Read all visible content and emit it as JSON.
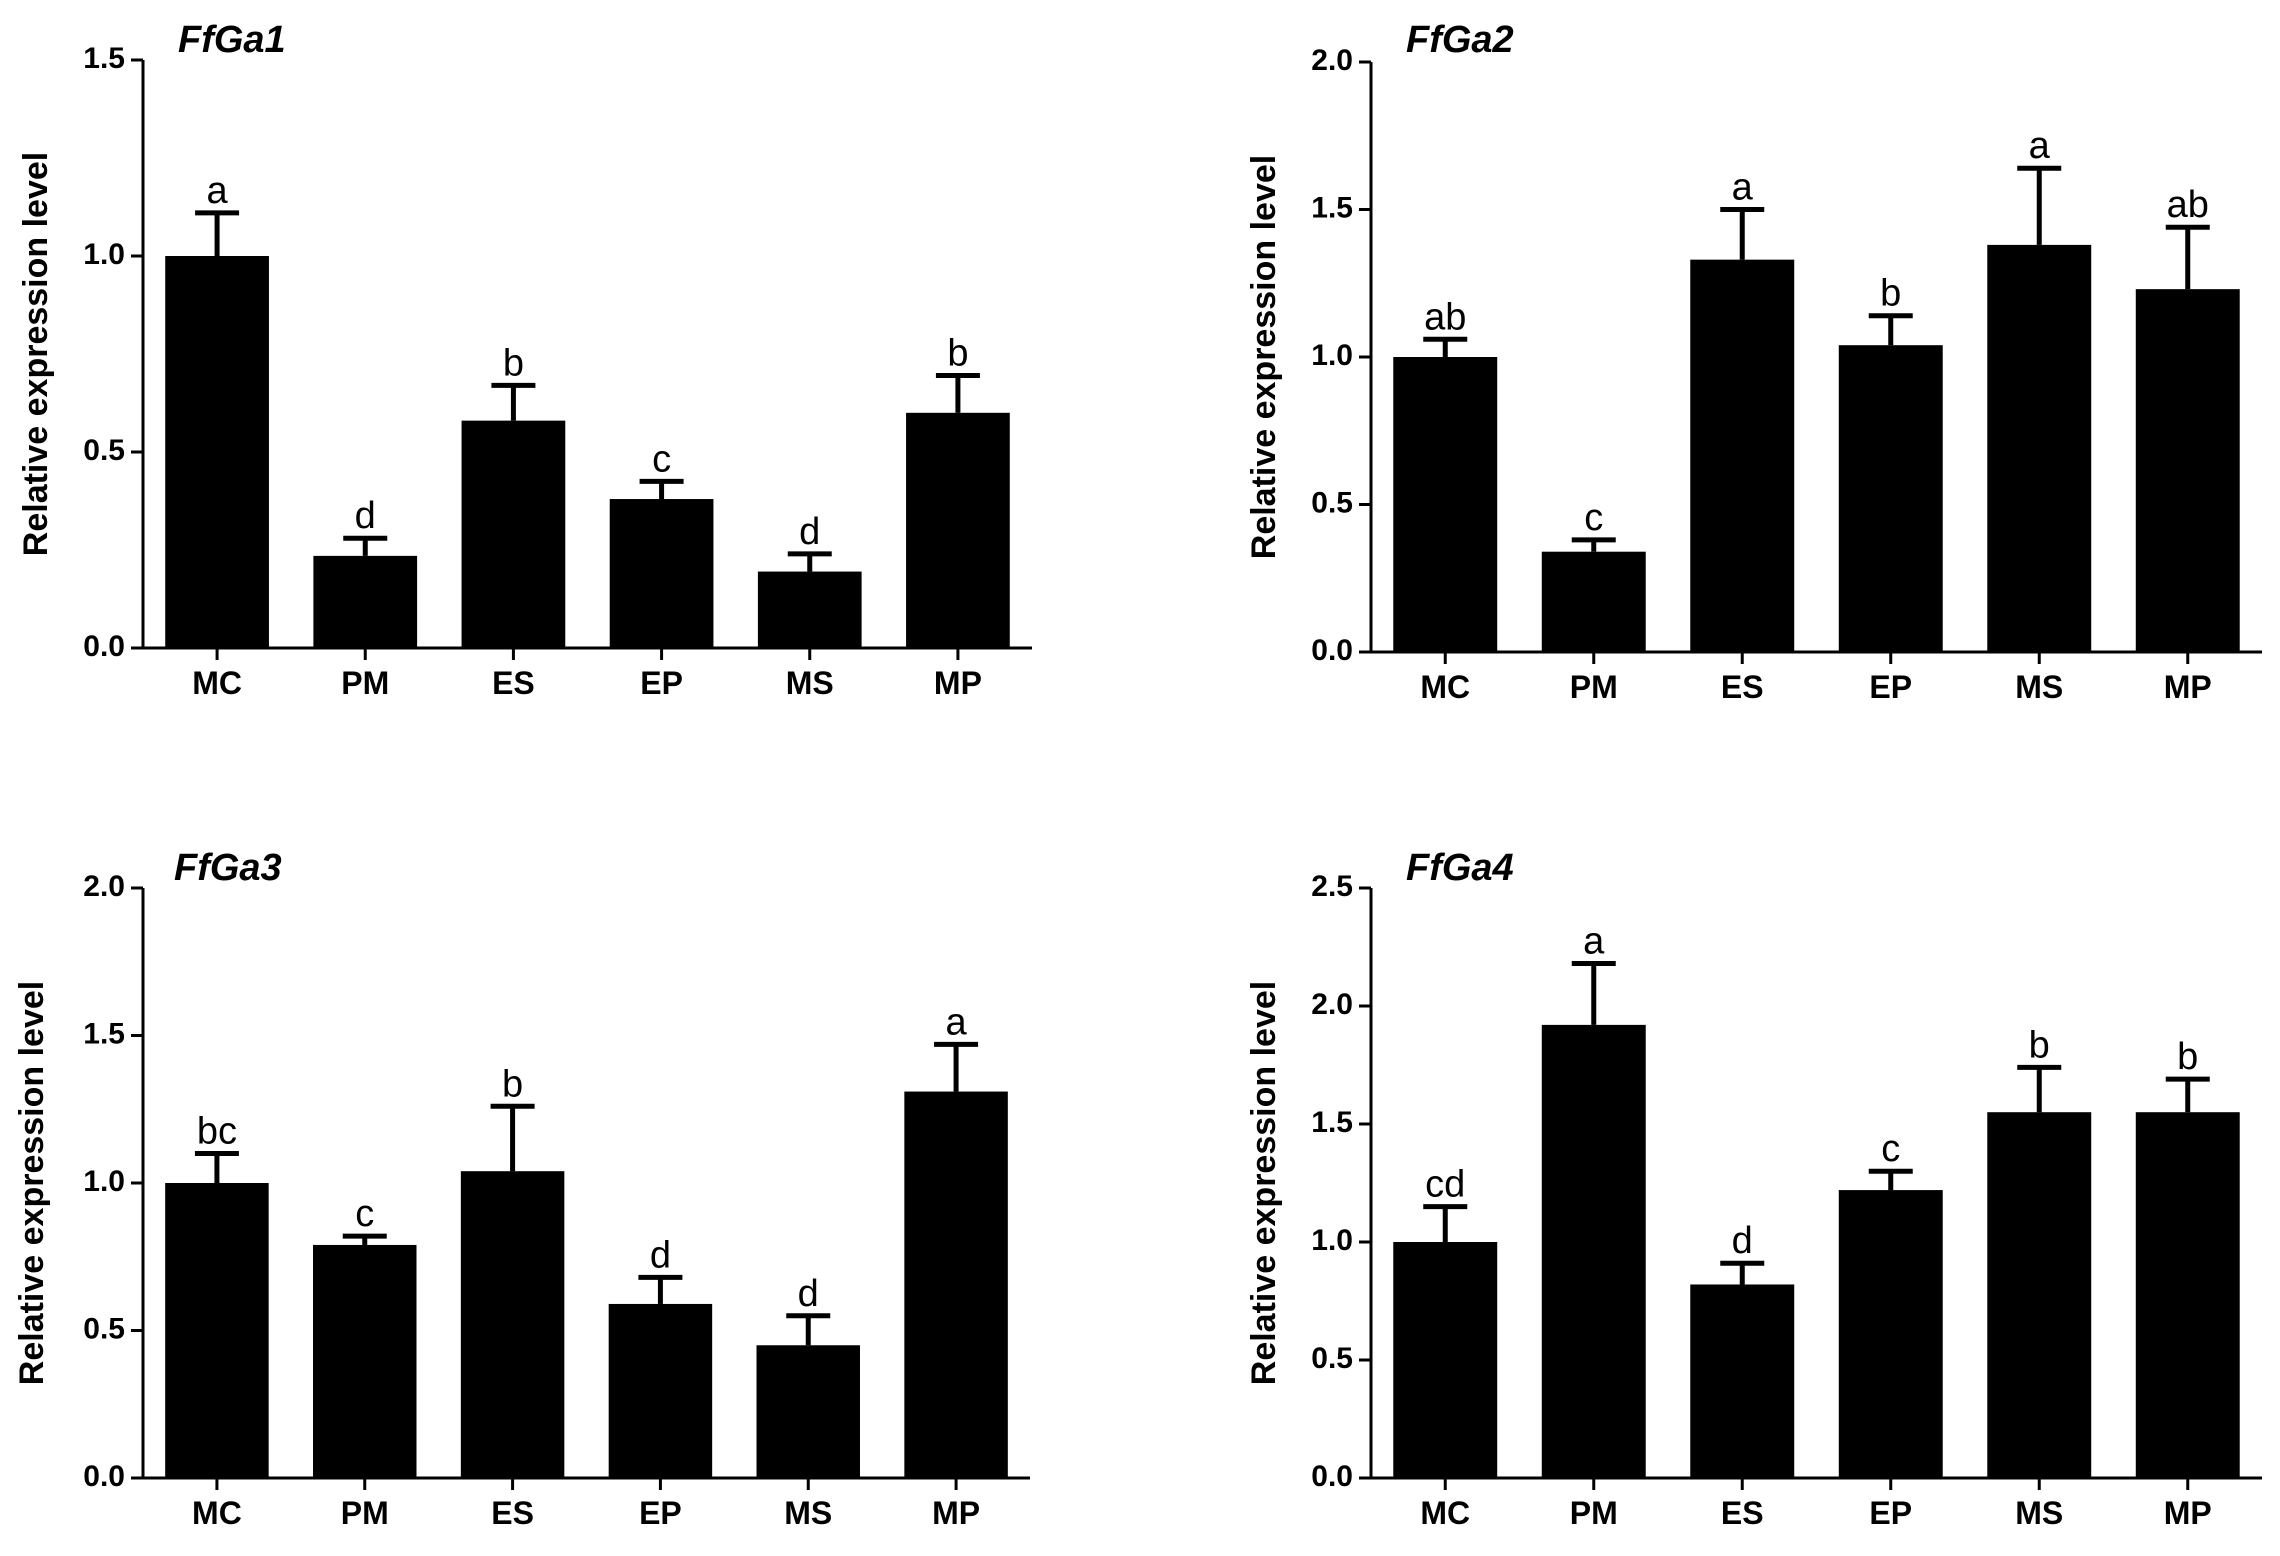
{
  "colors": {
    "bar": "#000000",
    "axis": "#000000",
    "background": "#ffffff"
  },
  "chart_data": [
    {
      "type": "bar",
      "title": "FfGa1",
      "ylabel": "Relative expression level",
      "xlabel": "",
      "categories": [
        "MC",
        "PM",
        "ES",
        "EP",
        "MS",
        "MP"
      ],
      "values": [
        1.0,
        0.235,
        0.58,
        0.38,
        0.195,
        0.6
      ],
      "errors": [
        0.11,
        0.045,
        0.09,
        0.045,
        0.045,
        0.095
      ],
      "significance": [
        "a",
        "d",
        "b",
        "c",
        "d",
        "b"
      ],
      "ylim": [
        0,
        1.5
      ],
      "yticks": [
        0.0,
        0.5,
        1.0,
        1.5
      ],
      "ytick_labels": [
        "0.0",
        "0.5",
        "1.0",
        "1.5"
      ]
    },
    {
      "type": "bar",
      "title": "FfGa2",
      "ylabel": "Relative expression level",
      "xlabel": "",
      "categories": [
        "MC",
        "PM",
        "ES",
        "EP",
        "MS",
        "MP"
      ],
      "values": [
        1.0,
        0.34,
        1.33,
        1.04,
        1.38,
        1.23
      ],
      "errors": [
        0.06,
        0.04,
        0.17,
        0.1,
        0.26,
        0.21
      ],
      "significance": [
        "ab",
        "c",
        "a",
        "b",
        "a",
        "ab"
      ],
      "ylim": [
        0,
        2.0
      ],
      "yticks": [
        0.0,
        0.5,
        1.0,
        1.5,
        2.0
      ],
      "ytick_labels": [
        "0.0",
        "0.5",
        "1.0",
        "1.5",
        "2.0"
      ]
    },
    {
      "type": "bar",
      "title": "FfGa3",
      "ylabel": "Relative expression level",
      "xlabel": "",
      "categories": [
        "MC",
        "PM",
        "ES",
        "EP",
        "MS",
        "MP"
      ],
      "values": [
        1.0,
        0.79,
        1.04,
        0.59,
        0.45,
        1.31
      ],
      "errors": [
        0.1,
        0.03,
        0.22,
        0.09,
        0.1,
        0.16
      ],
      "significance": [
        "bc",
        "c",
        "b",
        "d",
        "d",
        "a"
      ],
      "ylim": [
        0,
        2.0
      ],
      "yticks": [
        0.0,
        0.5,
        1.0,
        1.5,
        2.0
      ],
      "ytick_labels": [
        "0.0",
        "0.5",
        "1.0",
        "1.5",
        "2.0"
      ]
    },
    {
      "type": "bar",
      "title": "FfGa4",
      "ylabel": "Relative expression level",
      "xlabel": "",
      "categories": [
        "MC",
        "PM",
        "ES",
        "EP",
        "MS",
        "MP"
      ],
      "values": [
        1.0,
        1.92,
        0.82,
        1.22,
        1.55,
        1.55
      ],
      "errors": [
        0.15,
        0.26,
        0.09,
        0.08,
        0.19,
        0.14
      ],
      "significance": [
        "cd",
        "a",
        "d",
        "c",
        "b",
        "b"
      ],
      "ylim": [
        0,
        2.5
      ],
      "yticks": [
        0.0,
        0.5,
        1.0,
        1.5,
        2.0,
        2.5
      ],
      "ytick_labels": [
        "0.0",
        "0.5",
        "1.0",
        "1.5",
        "2.0",
        "2.5"
      ]
    }
  ]
}
